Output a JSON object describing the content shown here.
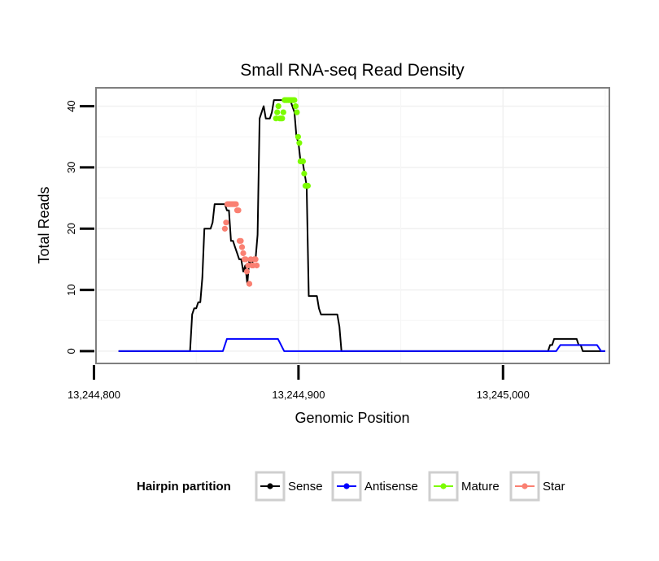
{
  "chart_data": {
    "type": "line",
    "title": "Small RNA-seq Read Density",
    "xlabel": "Genomic Position",
    "ylabel": "Total Reads",
    "xlim": [
      13244801,
      13245052
    ],
    "ylim": [
      -2,
      43
    ],
    "xticks": [
      13244800,
      13244900,
      13245000
    ],
    "xtick_labels": [
      "13,244,800",
      "13,244,900",
      "13,245,000"
    ],
    "yticks": [
      0,
      10,
      20,
      30,
      40
    ],
    "ytick_labels": [
      "0",
      "10",
      "20",
      "30",
      "40"
    ],
    "grid": true,
    "legend": {
      "title": "Hairpin partition",
      "position": "bottom",
      "entries": [
        {
          "name": "Sense",
          "color": "#000000"
        },
        {
          "name": "Antisense",
          "color": "#0000FF"
        },
        {
          "name": "Mature",
          "color": "#7CFC00"
        },
        {
          "name": "Star",
          "color": "#FA8072"
        }
      ]
    },
    "series": [
      {
        "name": "Sense",
        "color": "#000000",
        "marker": false,
        "x": [
          13244812,
          13244847,
          13244848,
          13244849,
          13244850,
          13244851,
          13244852,
          13244853,
          13244854,
          13244855,
          13244856,
          13244857,
          13244858,
          13244859,
          13244860,
          13244861,
          13244862,
          13244863,
          13244864,
          13244865,
          13244866,
          13244867,
          13244868,
          13244869,
          13244870,
          13244871,
          13244872,
          13244873,
          13244874,
          13244875,
          13244876,
          13244877,
          13244878,
          13244879,
          13244880,
          13244881,
          13244882,
          13244883,
          13244884,
          13244885,
          13244886,
          13244887,
          13244888,
          13244889,
          13244890,
          13244891,
          13244892,
          13244893,
          13244894,
          13244895,
          13244896,
          13244897,
          13244898,
          13244899,
          13244900,
          13244901,
          13244902,
          13244903,
          13244904,
          13244905,
          13244906,
          13244907,
          13244908,
          13244909,
          13244910,
          13244911,
          13244912,
          13244913,
          13244914,
          13244915,
          13244916,
          13244917,
          13244918,
          13244919,
          13244920,
          13244921,
          13245022,
          13245023,
          13245024,
          13245025,
          13245036,
          13245037,
          13245038,
          13245039,
          13245040,
          13245050
        ],
        "y": [
          0,
          0,
          6,
          7,
          7,
          8,
          8,
          12,
          20,
          20,
          20,
          20,
          21,
          24,
          24,
          24,
          24,
          24,
          24,
          23,
          23,
          18,
          18,
          17,
          16,
          15,
          15,
          13,
          14,
          11,
          15,
          14,
          15,
          15,
          19,
          38,
          39,
          40,
          38,
          38,
          38,
          39,
          41,
          41,
          41,
          41,
          41,
          41,
          41,
          41,
          41,
          40,
          39,
          35,
          34,
          31,
          31,
          29,
          27,
          9,
          9,
          9,
          9,
          9,
          7,
          6,
          6,
          6,
          6,
          6,
          6,
          6,
          6,
          6,
          4,
          0,
          0,
          1,
          1,
          2,
          2,
          1,
          1,
          0,
          0,
          0
        ]
      },
      {
        "name": "Antisense",
        "color": "#0000FF",
        "marker": false,
        "x": [
          13244812,
          13244863,
          13244865,
          13244890,
          13244893,
          13244920,
          13245026,
          13245028,
          13245046,
          13245048,
          13245050
        ],
        "y": [
          0,
          0,
          2,
          2,
          0,
          0,
          0,
          1,
          1,
          0,
          0
        ]
      },
      {
        "name": "Mature",
        "color": "#7CFC00",
        "marker": true,
        "x": [
          13244889,
          13244889.6,
          13244890.2,
          13244890.8,
          13244891.4,
          13244892,
          13244892.6,
          13244893.2,
          13244893.8,
          13244894.4,
          13244895,
          13244895.6,
          13244896.2,
          13244896.8,
          13244897.4,
          13244898,
          13244898.6,
          13244899.2,
          13244899.8,
          13244900.4,
          13244901,
          13244901.6,
          13244902.2,
          13244902.8,
          13244903.4,
          13244904,
          13244904.6
        ],
        "y": [
          38,
          39,
          40,
          38,
          38,
          38,
          39,
          41,
          41,
          41,
          41,
          41,
          41,
          41,
          41,
          41,
          40,
          39,
          35,
          34,
          31,
          31,
          31,
          29,
          27,
          27,
          27
        ]
      },
      {
        "name": "Star",
        "color": "#FA8072",
        "marker": true,
        "x": [
          13244864,
          13244864.6,
          13244865.2,
          13244865.8,
          13244866.4,
          13244867,
          13244867.6,
          13244868.2,
          13244868.8,
          13244869.4,
          13244870,
          13244870.6,
          13244871.2,
          13244871.8,
          13244872.4,
          13244873,
          13244873.6,
          13244874.2,
          13244874.8,
          13244875.4,
          13244876,
          13244876.6,
          13244877.2,
          13244877.8,
          13244878.4,
          13244879,
          13244879.6
        ],
        "y": [
          20,
          21,
          24,
          24,
          24,
          24,
          24,
          24,
          24,
          24,
          23,
          23,
          18,
          18,
          17,
          16,
          15,
          15,
          13,
          14,
          11,
          15,
          14,
          14,
          15,
          15,
          14
        ]
      }
    ]
  }
}
